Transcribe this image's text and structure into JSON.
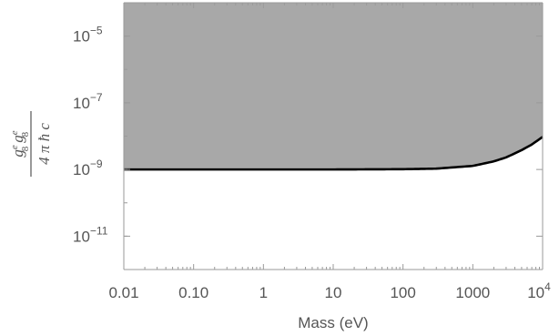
{
  "chart_data": {
    "type": "area",
    "title": "",
    "xlabel": "Mass (eV)",
    "ylabel": {
      "numerator": [
        "g",
        "e",
        "8",
        "g",
        "e",
        "8"
      ],
      "denominator": "4 π ħ c"
    },
    "xscale": "log",
    "yscale": "log",
    "xlim": [
      0.01,
      10000
    ],
    "ylim": [
      1e-12,
      0.0001
    ],
    "x_ticks": [
      {
        "value": 0.01,
        "label": "0.01"
      },
      {
        "value": 0.1,
        "label": "0.10"
      },
      {
        "value": 1,
        "label": "1"
      },
      {
        "value": 10,
        "label": "10"
      },
      {
        "value": 100,
        "label": "100"
      },
      {
        "value": 1000,
        "label": "1000"
      },
      {
        "value": 10000,
        "label": "10",
        "exp": "4"
      }
    ],
    "y_ticks": [
      {
        "value": 1e-05,
        "base": "10",
        "exp": "−5"
      },
      {
        "value": 1e-07,
        "base": "10",
        "exp": "−7"
      },
      {
        "value": 1e-09,
        "base": "10",
        "exp": "−9"
      },
      {
        "value": 1e-11,
        "base": "10",
        "exp": "−11"
      }
    ],
    "series": [
      {
        "x": [
          0.01,
          0.1,
          1,
          10,
          100,
          300,
          1000,
          2000,
          3000,
          5000,
          7000,
          10000
        ],
        "y": [
          1e-09,
          1e-09,
          1e-09,
          1e-09,
          1.02e-09,
          1.06e-09,
          1.28e-09,
          1.75e-09,
          2.3e-09,
          3.8e-09,
          5.6e-09,
          9.5e-09
        ]
      }
    ],
    "shaded_region": "above-curve",
    "fill_color": "#a8a8a8",
    "line_color": "#000000",
    "grid": false,
    "legend": "none"
  }
}
